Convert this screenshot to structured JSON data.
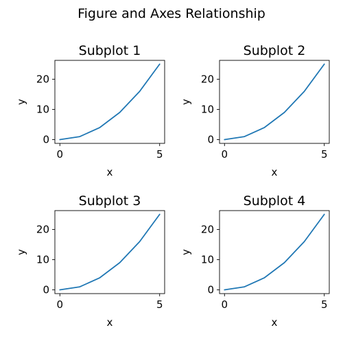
{
  "figure": {
    "suptitle": "Figure and Axes Relationship"
  },
  "chart_data": [
    {
      "type": "line",
      "title": "Subplot 1",
      "xlabel": "x",
      "ylabel": "y",
      "x": [
        0,
        1,
        2,
        3,
        4,
        5
      ],
      "y": [
        0,
        1,
        4,
        9,
        16,
        25
      ],
      "xlim": [
        -0.25,
        5.25
      ],
      "ylim": [
        -1.25,
        26.25
      ],
      "xticks": [
        0,
        5
      ],
      "yticks": [
        0,
        10,
        20
      ],
      "line_color": "#1f77b4",
      "grid": false
    },
    {
      "type": "line",
      "title": "Subplot 2",
      "xlabel": "x",
      "ylabel": "y",
      "x": [
        0,
        1,
        2,
        3,
        4,
        5
      ],
      "y": [
        0,
        1,
        4,
        9,
        16,
        25
      ],
      "xlim": [
        -0.25,
        5.25
      ],
      "ylim": [
        -1.25,
        26.25
      ],
      "xticks": [
        0,
        5
      ],
      "yticks": [
        0,
        10,
        20
      ],
      "line_color": "#1f77b4",
      "grid": false
    },
    {
      "type": "line",
      "title": "Subplot 3",
      "xlabel": "x",
      "ylabel": "y",
      "x": [
        0,
        1,
        2,
        3,
        4,
        5
      ],
      "y": [
        0,
        1,
        4,
        9,
        16,
        25
      ],
      "xlim": [
        -0.25,
        5.25
      ],
      "ylim": [
        -1.25,
        26.25
      ],
      "xticks": [
        0,
        5
      ],
      "yticks": [
        0,
        10,
        20
      ],
      "line_color": "#1f77b4",
      "grid": false
    },
    {
      "type": "line",
      "title": "Subplot 4",
      "xlabel": "x",
      "ylabel": "y",
      "x": [
        0,
        1,
        2,
        3,
        4,
        5
      ],
      "y": [
        0,
        1,
        4,
        9,
        16,
        25
      ],
      "xlim": [
        -0.25,
        5.25
      ],
      "ylim": [
        -1.25,
        26.25
      ],
      "xticks": [
        0,
        5
      ],
      "yticks": [
        0,
        10,
        20
      ],
      "line_color": "#1f77b4",
      "grid": false
    }
  ]
}
